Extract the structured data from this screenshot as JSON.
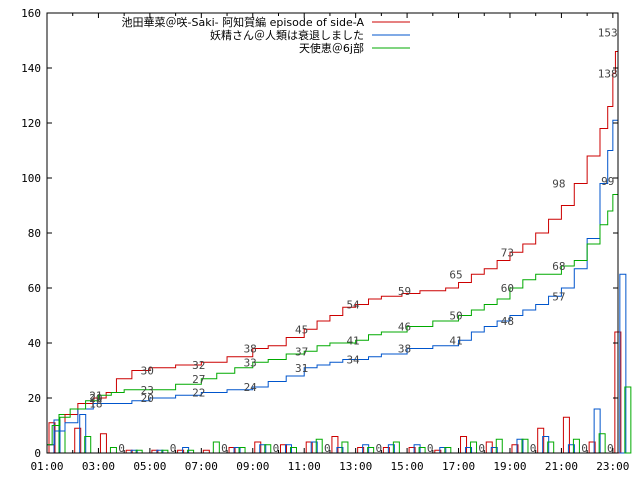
{
  "chart_data": {
    "type": "line",
    "xlabel": "",
    "ylabel": "",
    "xlim": [
      1.0,
      23.2
    ],
    "ylim": [
      0,
      160
    ],
    "x_ticks": [
      "01:00",
      "03:00",
      "05:00",
      "07:00",
      "09:00",
      "11:00",
      "13:00",
      "15:00",
      "17:00",
      "19:00",
      "21:00",
      "23:00"
    ],
    "y_ticks": [
      "0",
      "20",
      "40",
      "60",
      "80",
      "100",
      "120",
      "140",
      "160"
    ],
    "legend_position": "top-right",
    "series": [
      {
        "name": "池田華菜＠咲-Saki- 阿知賀編 episode of side-A",
        "color": "#cc0000",
        "points": [
          [
            1.0,
            3
          ],
          [
            1.3,
            8
          ],
          [
            1.7,
            14
          ],
          [
            2.2,
            18
          ],
          [
            2.8,
            20
          ],
          [
            3.3,
            22
          ],
          [
            3.7,
            27
          ],
          [
            4.3,
            30
          ],
          [
            5.0,
            31
          ],
          [
            6.0,
            32
          ],
          [
            7.0,
            33
          ],
          [
            8.0,
            35
          ],
          [
            9.0,
            38
          ],
          [
            9.6,
            39
          ],
          [
            10.3,
            42
          ],
          [
            11.0,
            45
          ],
          [
            11.5,
            48
          ],
          [
            12.0,
            50
          ],
          [
            12.5,
            53
          ],
          [
            13.0,
            54
          ],
          [
            13.5,
            56
          ],
          [
            14.0,
            57
          ],
          [
            14.8,
            58
          ],
          [
            15.5,
            59
          ],
          [
            16.5,
            60
          ],
          [
            17.0,
            62
          ],
          [
            17.5,
            65
          ],
          [
            18.0,
            67
          ],
          [
            18.5,
            70
          ],
          [
            19.0,
            73
          ],
          [
            19.5,
            76
          ],
          [
            20.0,
            80
          ],
          [
            20.5,
            85
          ],
          [
            21.0,
            90
          ],
          [
            21.5,
            98
          ],
          [
            22.0,
            108
          ],
          [
            22.5,
            118
          ],
          [
            22.8,
            126
          ],
          [
            23.0,
            138
          ],
          [
            23.1,
            146
          ],
          [
            23.2,
            153
          ]
        ],
        "labels": [
          {
            "x": 2.9,
            "y": 20,
            "text": "20"
          },
          {
            "x": 4.9,
            "y": 30,
            "text": "30"
          },
          {
            "x": 6.9,
            "y": 32,
            "text": "32"
          },
          {
            "x": 8.9,
            "y": 38,
            "text": "38"
          },
          {
            "x": 10.9,
            "y": 45,
            "text": "45"
          },
          {
            "x": 12.9,
            "y": 54,
            "text": "54"
          },
          {
            "x": 14.9,
            "y": 59,
            "text": "59"
          },
          {
            "x": 16.9,
            "y": 65,
            "text": "65"
          },
          {
            "x": 18.9,
            "y": 73,
            "text": "73"
          },
          {
            "x": 20.9,
            "y": 98,
            "text": "98"
          },
          {
            "x": 22.8,
            "y": 153,
            "text": "153"
          }
        ]
      },
      {
        "name": "妖精さん＠人類は衰退しました",
        "color": "#0055cc",
        "points": [
          [
            1.0,
            3
          ],
          [
            1.3,
            8
          ],
          [
            1.7,
            11
          ],
          [
            2.2,
            16
          ],
          [
            2.8,
            18
          ],
          [
            3.5,
            18
          ],
          [
            4.3,
            19
          ],
          [
            5.0,
            20
          ],
          [
            6.0,
            21
          ],
          [
            7.0,
            22
          ],
          [
            8.0,
            23
          ],
          [
            9.0,
            24
          ],
          [
            9.6,
            26
          ],
          [
            10.3,
            28
          ],
          [
            11.0,
            31
          ],
          [
            11.5,
            32
          ],
          [
            12.0,
            33
          ],
          [
            12.5,
            34
          ],
          [
            13.0,
            34
          ],
          [
            13.5,
            35
          ],
          [
            14.0,
            36
          ],
          [
            15.0,
            38
          ],
          [
            16.0,
            39
          ],
          [
            17.0,
            41
          ],
          [
            17.5,
            44
          ],
          [
            18.0,
            46
          ],
          [
            18.5,
            48
          ],
          [
            19.0,
            50
          ],
          [
            19.5,
            52
          ],
          [
            20.0,
            54
          ],
          [
            20.5,
            57
          ],
          [
            21.0,
            60
          ],
          [
            21.5,
            67
          ],
          [
            22.0,
            78
          ],
          [
            22.5,
            98
          ],
          [
            22.8,
            110
          ],
          [
            23.0,
            121
          ],
          [
            23.2,
            138
          ]
        ],
        "labels": [
          {
            "x": 2.9,
            "y": 18,
            "text": "18"
          },
          {
            "x": 4.9,
            "y": 20,
            "text": "20"
          },
          {
            "x": 6.9,
            "y": 22,
            "text": "22"
          },
          {
            "x": 8.9,
            "y": 24,
            "text": "24"
          },
          {
            "x": 10.9,
            "y": 31,
            "text": "31"
          },
          {
            "x": 12.9,
            "y": 34,
            "text": "34"
          },
          {
            "x": 14.9,
            "y": 38,
            "text": "38"
          },
          {
            "x": 16.9,
            "y": 41,
            "text": "41"
          },
          {
            "x": 18.9,
            "y": 48,
            "text": "48"
          },
          {
            "x": 20.9,
            "y": 57,
            "text": "57"
          },
          {
            "x": 22.8,
            "y": 138,
            "text": "138"
          }
        ]
      },
      {
        "name": "天使恵＠6j部",
        "color": "#00aa00",
        "points": [
          [
            1.0,
            3
          ],
          [
            1.2,
            10
          ],
          [
            1.5,
            13
          ],
          [
            1.9,
            16
          ],
          [
            2.5,
            19
          ],
          [
            3.0,
            21
          ],
          [
            3.5,
            22
          ],
          [
            4.0,
            23
          ],
          [
            5.0,
            23
          ],
          [
            6.0,
            25
          ],
          [
            7.0,
            27
          ],
          [
            7.6,
            29
          ],
          [
            8.3,
            31
          ],
          [
            9.0,
            33
          ],
          [
            9.6,
            34
          ],
          [
            10.3,
            36
          ],
          [
            11.0,
            37
          ],
          [
            11.5,
            39
          ],
          [
            12.0,
            40
          ],
          [
            13.0,
            41
          ],
          [
            13.5,
            43
          ],
          [
            14.0,
            44
          ],
          [
            15.0,
            46
          ],
          [
            16.0,
            48
          ],
          [
            17.0,
            50
          ],
          [
            17.5,
            52
          ],
          [
            18.0,
            54
          ],
          [
            18.5,
            56
          ],
          [
            19.0,
            60
          ],
          [
            19.5,
            63
          ],
          [
            20.0,
            65
          ],
          [
            21.0,
            68
          ],
          [
            21.5,
            70
          ],
          [
            22.0,
            76
          ],
          [
            22.5,
            83
          ],
          [
            22.8,
            88
          ],
          [
            23.0,
            94
          ],
          [
            23.2,
            99
          ]
        ],
        "labels": [
          {
            "x": 2.9,
            "y": 21,
            "text": "21"
          },
          {
            "x": 4.9,
            "y": 23,
            "text": "23"
          },
          {
            "x": 6.9,
            "y": 27,
            "text": "27"
          },
          {
            "x": 8.9,
            "y": 33,
            "text": "33"
          },
          {
            "x": 10.9,
            "y": 37,
            "text": "37"
          },
          {
            "x": 12.9,
            "y": 41,
            "text": "41"
          },
          {
            "x": 14.9,
            "y": 46,
            "text": "46"
          },
          {
            "x": 16.9,
            "y": 50,
            "text": "50"
          },
          {
            "x": 18.9,
            "y": 60,
            "text": "60"
          },
          {
            "x": 20.9,
            "y": 68,
            "text": "68"
          },
          {
            "x": 22.8,
            "y": 99,
            "text": "99"
          }
        ]
      }
    ],
    "hourly_bars": {
      "hours": [
        1,
        2,
        3,
        4,
        5,
        6,
        7,
        8,
        9,
        10,
        11,
        12,
        13,
        14,
        15,
        16,
        17,
        18,
        19,
        20,
        21,
        22,
        23
      ],
      "series": [
        {
          "color": "#cc0000",
          "values": [
            11,
            9,
            7,
            1,
            1,
            1,
            1,
            2,
            4,
            3,
            4,
            6,
            2,
            2,
            2,
            1,
            6,
            4,
            3,
            9,
            13,
            4,
            44
          ]
        },
        {
          "color": "#0055cc",
          "values": [
            12,
            14,
            0,
            1,
            1,
            2,
            0,
            2,
            3,
            3,
            4,
            2,
            3,
            3,
            3,
            2,
            2,
            2,
            5,
            6,
            3,
            16,
            65
          ]
        },
        {
          "color": "#00aa00",
          "values": [
            14,
            6,
            2,
            1,
            1,
            1,
            4,
            2,
            3,
            2,
            5,
            4,
            2,
            4,
            2,
            2,
            4,
            5,
            5,
            4,
            5,
            7,
            24
          ]
        }
      ],
      "zero_labels": [
        {
          "x": 3.9,
          "text": "0"
        },
        {
          "x": 5.9,
          "text": "0"
        },
        {
          "x": 7.9,
          "text": "0"
        },
        {
          "x": 9.9,
          "text": "0"
        },
        {
          "x": 11.9,
          "text": "0"
        },
        {
          "x": 13.9,
          "text": "0"
        },
        {
          "x": 15.9,
          "text": "0"
        },
        {
          "x": 17.9,
          "text": "0"
        },
        {
          "x": 19.9,
          "text": "0"
        },
        {
          "x": 21.9,
          "text": "0"
        },
        {
          "x": 22.9,
          "text": "0"
        }
      ]
    }
  }
}
